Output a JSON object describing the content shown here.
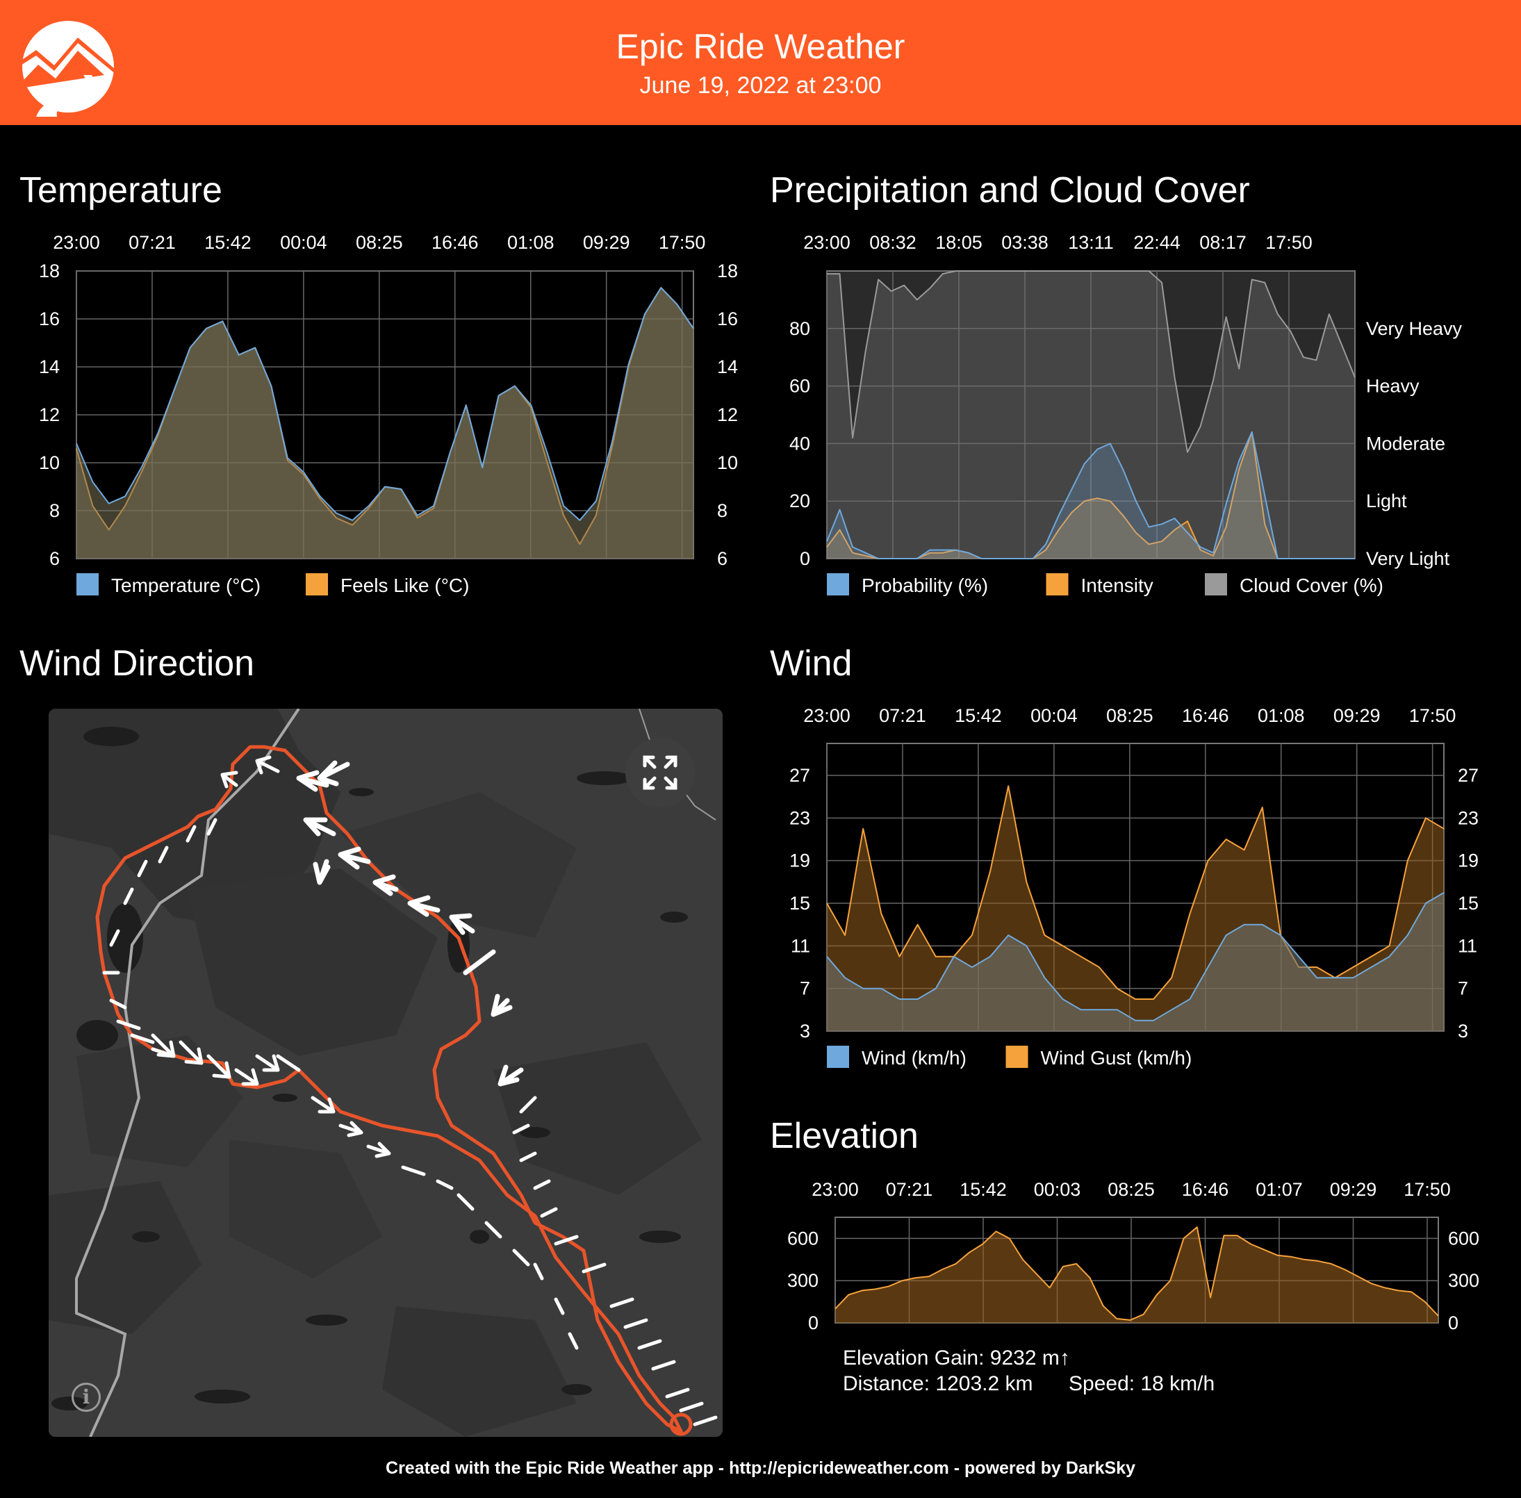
{
  "header": {
    "title": "Epic Ride Weather",
    "date": "June 19, 2022 at 23:00",
    "brand_color": "#ff5a24"
  },
  "sections": {
    "temperature": "Temperature",
    "precip": "Precipitation and Cloud Cover",
    "wind_direction": "Wind Direction",
    "wind": "Wind",
    "elevation": "Elevation"
  },
  "stats": {
    "gain": "Elevation Gain: 9232 m↑",
    "distance": "Distance: 1203.2 km",
    "speed": "Speed: 18 km/h"
  },
  "footer": "Created with the Epic Ride Weather app - http://epicrideweather.com - powered by DarkSky",
  "map": {
    "fullscreen_icon": "fullscreen-icon",
    "info_icon": "info-icon",
    "info_label": "i",
    "route_color": "#e8542a"
  },
  "chart_data": [
    {
      "id": "temperature",
      "type": "area",
      "x_ticks": [
        "23:00",
        "07:21",
        "15:42",
        "00:04",
        "08:25",
        "16:46",
        "01:08",
        "09:29",
        "17:50"
      ],
      "ylim": [
        6,
        18
      ],
      "yticks": [
        6,
        8,
        10,
        12,
        14,
        16,
        18
      ],
      "yticks_right": [
        6,
        8,
        10,
        12,
        14,
        16,
        18
      ],
      "grid": true,
      "legend_position": "bottom-left",
      "series": [
        {
          "name": "Temperature (°C)",
          "color": "#6fa8dc",
          "values": [
            10.8,
            9.2,
            8.3,
            8.6,
            9.8,
            11.2,
            13.0,
            14.8,
            15.6,
            15.9,
            14.5,
            14.8,
            13.2,
            10.2,
            9.6,
            8.6,
            7.9,
            7.6,
            8.2,
            9.0,
            8.9,
            7.8,
            8.2,
            10.4,
            12.4,
            9.8,
            12.8,
            13.2,
            12.4,
            10.4,
            8.2,
            7.6,
            8.4,
            10.9,
            14.1,
            16.2,
            17.3,
            16.6,
            15.6
          ]
        },
        {
          "name": "Feels Like (°C)",
          "color": "#f6a23c",
          "values": [
            10.6,
            8.2,
            7.2,
            8.2,
            9.6,
            11.1,
            13.0,
            14.8,
            15.6,
            15.9,
            14.5,
            14.8,
            13.2,
            10.1,
            9.5,
            8.5,
            7.7,
            7.4,
            8.1,
            9.0,
            8.9,
            7.7,
            8.1,
            10.4,
            12.4,
            9.8,
            12.8,
            13.2,
            12.3,
            10.0,
            7.8,
            6.6,
            7.8,
            10.7,
            14.0,
            16.2,
            17.3,
            16.6,
            15.6
          ]
        }
      ]
    },
    {
      "id": "precipitation",
      "type": "area",
      "x_ticks": [
        "23:00",
        "08:32",
        "18:05",
        "03:38",
        "13:11",
        "22:44",
        "08:17",
        "17:50"
      ],
      "ylim": [
        0,
        100
      ],
      "yticks": [
        0,
        20,
        40,
        60,
        80
      ],
      "right_labels": [
        "Very Light",
        "Light",
        "Moderate",
        "Heavy",
        "Very Heavy"
      ],
      "grid": true,
      "legend_position": "bottom-left",
      "series": [
        {
          "name": "Probability (%)",
          "color": "#6fa8dc",
          "values": [
            6,
            17,
            4,
            2,
            0,
            0,
            0,
            0,
            3,
            3,
            3,
            2,
            0,
            0,
            0,
            0,
            0,
            5,
            15,
            24,
            33,
            38,
            40,
            31,
            20,
            11,
            12,
            14,
            9,
            4,
            2,
            19,
            34,
            44,
            22,
            0,
            0,
            0,
            0,
            0,
            0,
            0
          ]
        },
        {
          "name": "Intensity",
          "color": "#f6a23c",
          "values": [
            4,
            10,
            2,
            1,
            0,
            0,
            0,
            0,
            2,
            2,
            3,
            2,
            0,
            0,
            0,
            0,
            0,
            3,
            10,
            16,
            20,
            21,
            20,
            15,
            9,
            5,
            6,
            10,
            13,
            3,
            1,
            11,
            31,
            44,
            12,
            0,
            0,
            0,
            0,
            0,
            0,
            0
          ]
        },
        {
          "name": "Cloud Cover (%)",
          "color": "#9a9a9a",
          "values": [
            99,
            99,
            42,
            72,
            97,
            93,
            95,
            90,
            94,
            99,
            100,
            100,
            100,
            100,
            100,
            100,
            100,
            100,
            100,
            100,
            100,
            100,
            100,
            100,
            100,
            100,
            96,
            63,
            37,
            46,
            62,
            84,
            66,
            97,
            96,
            85,
            79,
            70,
            69,
            85,
            74,
            63
          ]
        }
      ]
    },
    {
      "id": "wind",
      "type": "area",
      "x_ticks": [
        "23:00",
        "07:21",
        "15:42",
        "00:04",
        "08:25",
        "16:46",
        "01:08",
        "09:29",
        "17:50"
      ],
      "ylim": [
        3,
        30
      ],
      "yticks": [
        3,
        7,
        11,
        15,
        19,
        23,
        27
      ],
      "yticks_right": [
        3,
        7,
        11,
        15,
        19,
        23,
        27
      ],
      "grid": true,
      "legend_position": "bottom-left",
      "series": [
        {
          "name": "Wind (km/h)",
          "color": "#6fa8dc",
          "values": [
            10,
            8,
            7,
            7,
            6,
            6,
            7,
            10,
            9,
            10,
            12,
            11,
            8,
            6,
            5,
            5,
            5,
            4,
            4,
            5,
            6,
            9,
            12,
            13,
            13,
            12,
            10,
            8,
            8,
            8,
            9,
            10,
            12,
            15,
            16
          ]
        },
        {
          "name": "Wind Gust (km/h)",
          "color": "#f6a23c",
          "values": [
            15,
            12,
            22,
            14,
            10,
            13,
            10,
            10,
            12,
            18,
            26,
            17,
            12,
            11,
            10,
            9,
            7,
            6,
            6,
            8,
            14,
            19,
            21,
            20,
            24,
            12,
            9,
            9,
            8,
            9,
            10,
            11,
            19,
            23,
            22
          ]
        }
      ]
    },
    {
      "id": "elevation",
      "type": "area",
      "x_ticks": [
        "23:00",
        "07:21",
        "15:42",
        "00:03",
        "08:25",
        "16:46",
        "01:07",
        "09:29",
        "17:50"
      ],
      "ylim": [
        0,
        750
      ],
      "yticks": [
        0,
        300,
        600
      ],
      "yticks_right": [
        0,
        300,
        600
      ],
      "grid": true,
      "series": [
        {
          "name": "Elevation",
          "color": "#f6a23c",
          "values": [
            100,
            200,
            230,
            240,
            260,
            300,
            320,
            330,
            380,
            420,
            500,
            560,
            650,
            600,
            450,
            350,
            250,
            400,
            420,
            320,
            120,
            30,
            20,
            60,
            200,
            300,
            600,
            680,
            180,
            620,
            620,
            560,
            520,
            480,
            470,
            450,
            440,
            420,
            380,
            330,
            280,
            250,
            230,
            220,
            150,
            50
          ]
        }
      ]
    }
  ]
}
